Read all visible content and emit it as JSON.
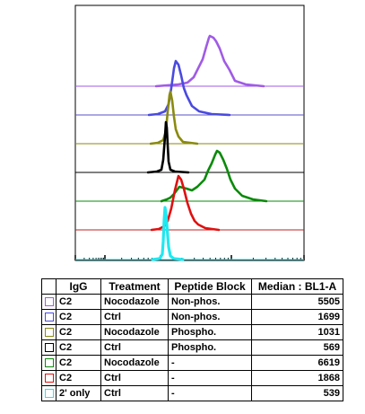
{
  "chart_data": {
    "type": "area",
    "title": "",
    "xlabel": "",
    "ylabel": "",
    "x_scale": "log",
    "grid": false,
    "legend_position": "bottom",
    "table_headers": [
      "IgG",
      "Treatment",
      "Peptide Block",
      "Median : BL1-A"
    ],
    "series": [
      {
        "igg": "C2",
        "treatment": "Nocodazole",
        "peptide_block": "Non-phos.",
        "median": "5505",
        "median_value": 5505,
        "color": "#a05be6",
        "line_color": "#a05be6"
      },
      {
        "igg": "C2",
        "treatment": "Ctrl",
        "peptide_block": "Non-phos.",
        "median": "1699",
        "median_value": 1699,
        "color": "#4a4ae0",
        "line_color": "#5a52c8"
      },
      {
        "igg": "C2",
        "treatment": "Nocodazole",
        "peptide_block": "Phospho.",
        "median": "1031",
        "median_value": 1031,
        "color": "#8a8a10",
        "line_color": "#8a8a10"
      },
      {
        "igg": "C2",
        "treatment": "Ctrl",
        "peptide_block": "Phospho.",
        "median": "569",
        "median_value": 569,
        "color": "#000000",
        "line_color": "#000000"
      },
      {
        "igg": "C2",
        "treatment": "Nocodazole",
        "peptide_block": "-",
        "median": "6619",
        "median_value": 6619,
        "color": "#0a8a0a",
        "line_color": "#0a8a0a"
      },
      {
        "igg": "C2",
        "treatment": "Ctrl",
        "peptide_block": "-",
        "median": "1868",
        "median_value": 1868,
        "color": "#e01010",
        "line_color": "#c02020"
      },
      {
        "igg": "2' only",
        "treatment": "Ctrl",
        "peptide_block": "-",
        "median": "539",
        "median_value": 539,
        "color": "#20e8f0",
        "line_color": "#20e8f0"
      }
    ]
  }
}
